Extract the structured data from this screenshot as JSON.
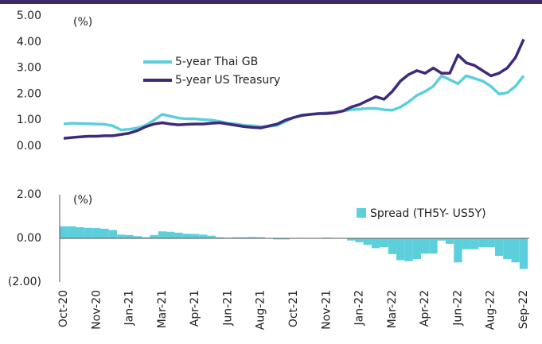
{
  "chart_data": [
    {
      "type": "line",
      "unit_label": "(%)",
      "ylim": [
        0,
        5
      ],
      "yticks": [
        {
          "value": 0,
          "label": "0.00"
        },
        {
          "value": 1,
          "label": "1.00"
        },
        {
          "value": 2,
          "label": "2.00"
        },
        {
          "value": 3,
          "label": "3.00"
        },
        {
          "value": 4,
          "label": "4.00"
        },
        {
          "value": 5,
          "label": "5.00"
        }
      ],
      "series": [
        {
          "name": "5-year Thai GB",
          "color": "#5ccfdc",
          "values": [
            0.85,
            0.88,
            0.87,
            0.86,
            0.85,
            0.84,
            0.78,
            0.62,
            0.65,
            0.7,
            0.8,
            1.0,
            1.22,
            1.15,
            1.08,
            1.05,
            1.05,
            1.02,
            1.0,
            0.95,
            0.88,
            0.85,
            0.8,
            0.78,
            0.75,
            0.76,
            0.8,
            0.95,
            1.1,
            1.2,
            1.22,
            1.25,
            1.28,
            1.3,
            1.35,
            1.4,
            1.42,
            1.45,
            1.45,
            1.4,
            1.38,
            1.5,
            1.7,
            1.95,
            2.1,
            2.3,
            2.7,
            2.55,
            2.4,
            2.7,
            2.6,
            2.5,
            2.3,
            2.0,
            2.05,
            2.3,
            2.7
          ]
        },
        {
          "name": "5-year US Treasury",
          "color": "#3f2a7a",
          "values": [
            0.3,
            0.33,
            0.36,
            0.38,
            0.38,
            0.4,
            0.4,
            0.45,
            0.5,
            0.6,
            0.75,
            0.85,
            0.9,
            0.85,
            0.82,
            0.84,
            0.85,
            0.85,
            0.88,
            0.9,
            0.85,
            0.8,
            0.75,
            0.72,
            0.7,
            0.78,
            0.85,
            1.0,
            1.1,
            1.18,
            1.22,
            1.25,
            1.25,
            1.28,
            1.35,
            1.5,
            1.6,
            1.75,
            1.9,
            1.8,
            2.1,
            2.5,
            2.75,
            2.9,
            2.8,
            3.0,
            2.8,
            2.8,
            3.5,
            3.2,
            3.1,
            2.9,
            2.7,
            2.8,
            3.0,
            3.4,
            4.1
          ]
        }
      ]
    },
    {
      "type": "bar",
      "unit_label": "(%)",
      "ylim": [
        -2,
        2
      ],
      "yticks": [
        {
          "value": -2,
          "label": "(2.00)"
        },
        {
          "value": 0,
          "label": "0.00"
        },
        {
          "value": 2,
          "label": "2.00"
        }
      ],
      "categories": [
        "Oct-20",
        null,
        null,
        null,
        "Nov-20",
        null,
        null,
        null,
        "Jan-21",
        null,
        null,
        null,
        "Mar-21",
        null,
        null,
        null,
        "Apr-21",
        null,
        null,
        null,
        "Jun-21",
        null,
        null,
        null,
        "Aug-21",
        null,
        null,
        null,
        "Oct-21",
        null,
        null,
        null,
        "Nov-21",
        null,
        null,
        null,
        "Jan-22",
        null,
        null,
        null,
        "Mar-22",
        null,
        null,
        null,
        "Apr-22",
        null,
        null,
        null,
        "Jun-22",
        null,
        null,
        null,
        "Aug-22",
        null,
        null,
        null,
        "Sep-22"
      ],
      "series": [
        {
          "name": "Spread (TH5Y- US5Y)",
          "color": "#5ccfdc",
          "values": [
            0.55,
            0.55,
            0.51,
            0.48,
            0.47,
            0.44,
            0.38,
            0.17,
            0.15,
            0.1,
            0.05,
            0.15,
            0.32,
            0.3,
            0.26,
            0.21,
            0.2,
            0.17,
            0.12,
            0.05,
            0.03,
            0.05,
            0.05,
            0.06,
            0.05,
            -0.02,
            -0.05,
            -0.05,
            0.0,
            0.02,
            0.0,
            0.0,
            0.03,
            0.02,
            0.0,
            -0.1,
            -0.18,
            -0.3,
            -0.45,
            -0.4,
            -0.72,
            -1.0,
            -1.05,
            -0.95,
            -0.7,
            -0.7,
            -0.1,
            -0.25,
            -1.1,
            -0.5,
            -0.5,
            -0.4,
            -0.4,
            -0.8,
            -0.95,
            -1.1,
            -1.4
          ]
        }
      ]
    }
  ]
}
